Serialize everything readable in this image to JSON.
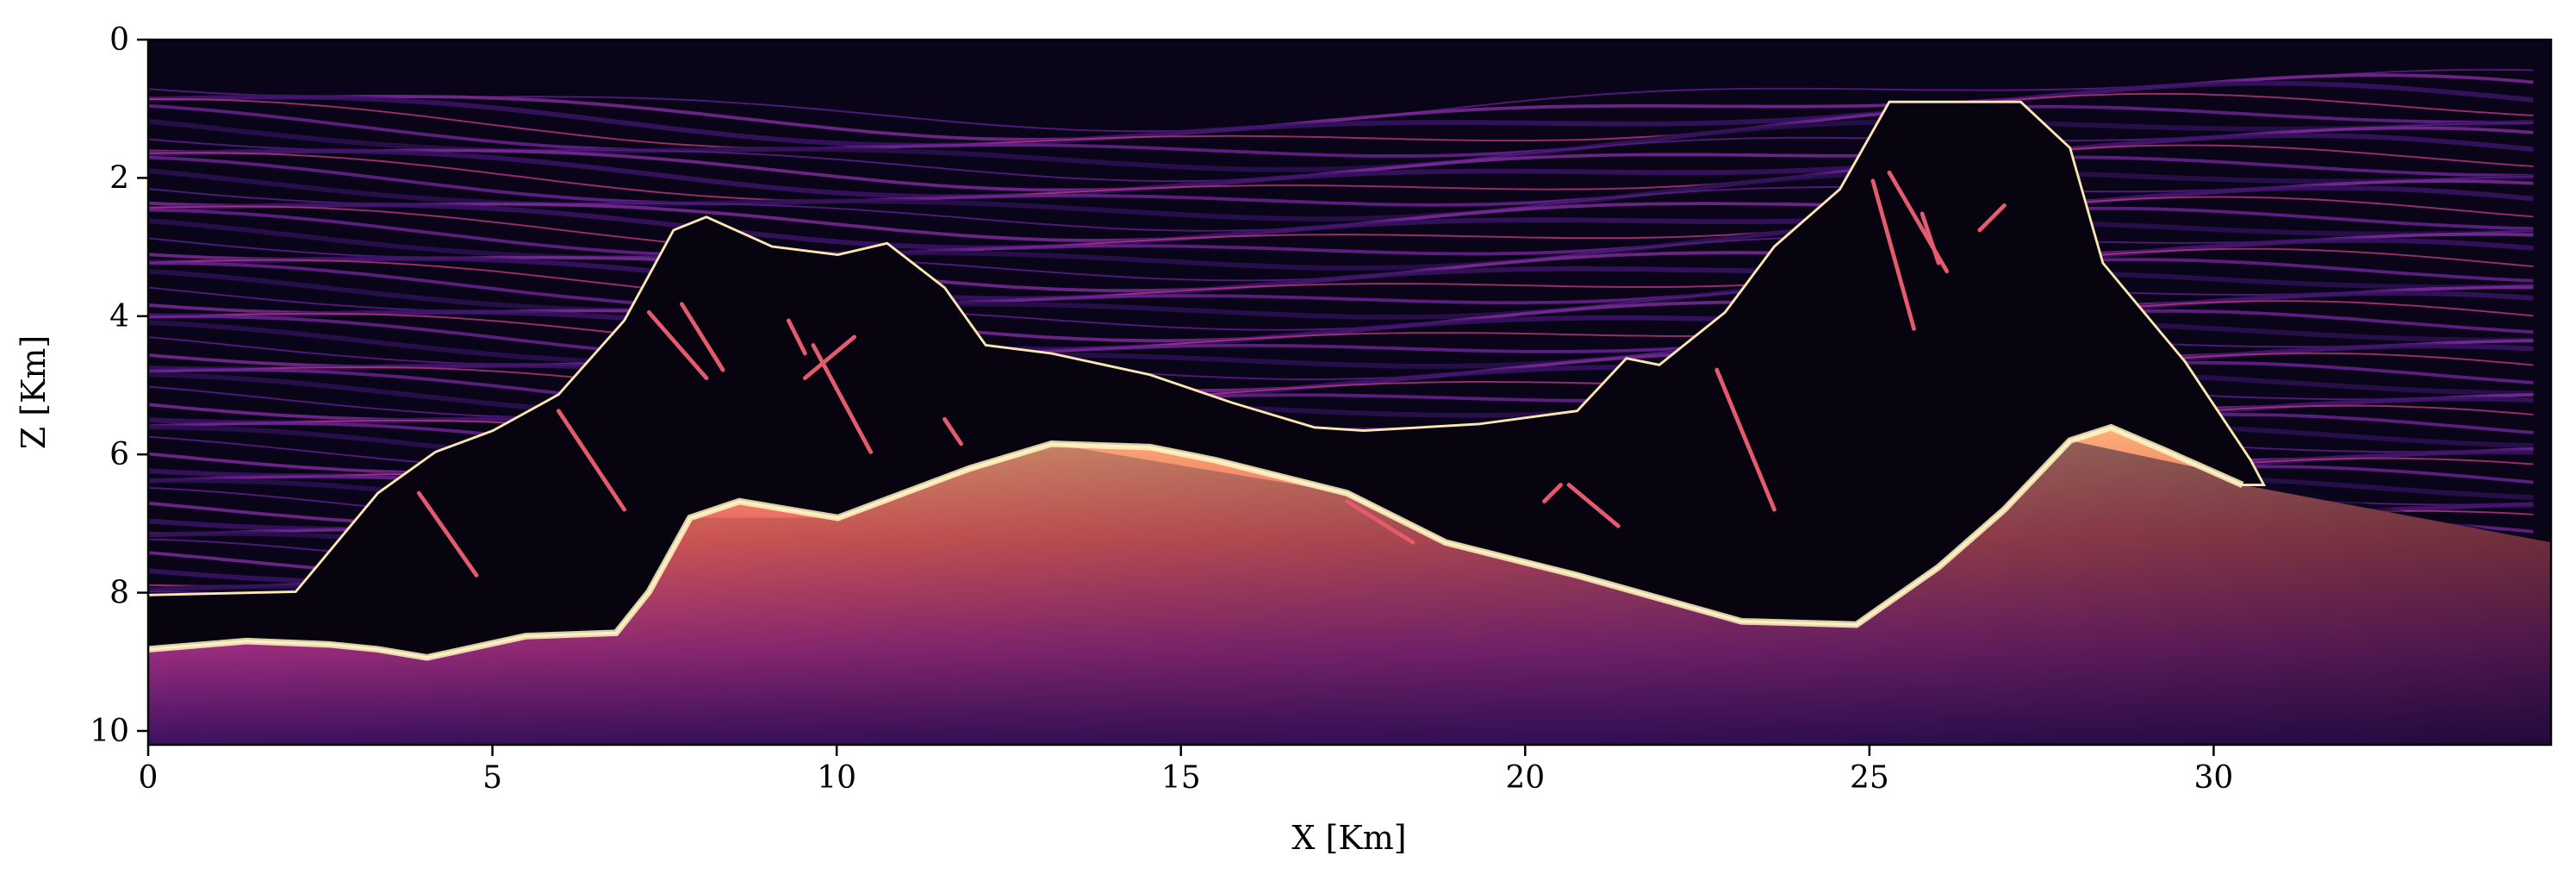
{
  "chart_data": {
    "type": "image",
    "xlabel": "X [Km]",
    "ylabel": "Z [Km]",
    "xlim": [
      0,
      34.9
    ],
    "ylim": [
      10.2,
      0
    ],
    "xticks": [
      0,
      5,
      10,
      15,
      20,
      25,
      30
    ],
    "yticks": [
      0,
      2,
      4,
      6,
      8,
      10
    ]
  }
}
